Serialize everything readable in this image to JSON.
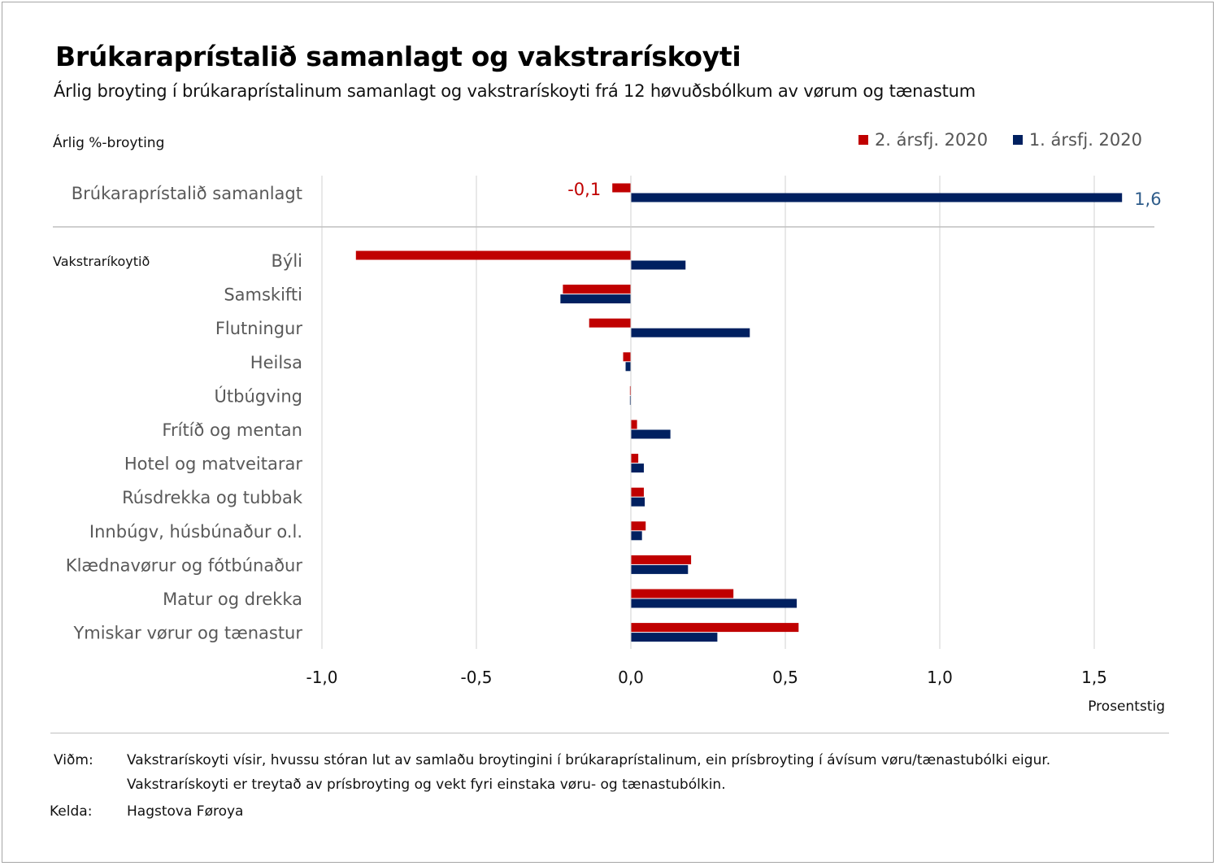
{
  "header": {
    "title": "Brúkaraprístalið samanlagt og vakstrarískoyti",
    "subtitle": "Árlig broyting í brúkaraprístalinum samanlagt og vakstrarískoyti frá 12 høvuðsbólkum av vørum og tænastum",
    "ylabel": "Árlig %-broyting"
  },
  "legend": [
    {
      "label": "2.  ársfj. 2020",
      "color": "#c00000"
    },
    {
      "label": "1.  ársfj. 2020",
      "color": "#002060"
    }
  ],
  "chart_data": {
    "type": "bar",
    "orientation": "horizontal",
    "xlabel": "Prosentstig",
    "xlim": [
      -1.0,
      1.75
    ],
    "xticks": [
      "-1,0",
      "-0,5",
      "0,0",
      "0,5",
      "1,0",
      "1,5"
    ],
    "grid": true,
    "legend_position": "top-right",
    "group_label": "Vakstraríkoytið",
    "categories": [
      "Brúkaraprístalið samanlagt",
      "Býli",
      "Samskifti",
      "Flutningur",
      "Heilsa",
      "Útbúgving",
      "Frítíð og mentan",
      "Hotel og matveitarar",
      "Rúsdrekka og tubbak",
      "Innbúgv,  húsbúnaður o.l.",
      "Klædnavørur og fótbúnaður",
      "Matur og drekka",
      "Ymiskar vørur og tænastur"
    ],
    "series": [
      {
        "name": "2.  ársfj. 2020",
        "color": "#c00000",
        "values": [
          -0.06,
          -0.89,
          -0.22,
          -0.135,
          -0.025,
          -0.003,
          0.02,
          0.024,
          0.042,
          0.048,
          0.195,
          0.332,
          0.543
        ]
      },
      {
        "name": "1.  ársfj. 2020",
        "color": "#002060",
        "values": [
          1.59,
          0.177,
          -0.228,
          0.385,
          -0.017,
          -0.003,
          0.128,
          0.042,
          0.045,
          0.036,
          0.185,
          0.537,
          0.28
        ]
      }
    ],
    "data_labels": [
      {
        "series": "2.  ársfj. 2020",
        "category": "Brúkaraprístalið samanlagt",
        "text": "-0,1",
        "color": "#c00000"
      },
      {
        "series": "1.  ársfj. 2020",
        "category": "Brúkaraprístalið samanlagt",
        "text": "1,6",
        "color": "#2e5c8a"
      }
    ]
  },
  "notes": {
    "note_key": "Viðm:",
    "note_line1": "Vakstrarískoyti vísir, hvussu stóran lut av samlaðu broytingini í brúkaraprístalinum, ein prísbroyting í ávísum vøru/tænastubólki eigur.",
    "note_line2": "Vakstrarískoyti er treytað av prísbroyting og vekt fyri einstaka vøru- og tænastubólkin.",
    "source_key": "Kelda:",
    "source_value": "Hagstova Føroya"
  }
}
